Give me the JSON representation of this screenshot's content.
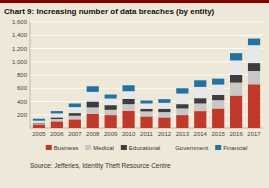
{
  "chart_data": {
    "type": "bar",
    "stacked": true,
    "title": "Chart 9: Increasing number of data breaches (by entity)",
    "source": "Source: Jefferies, Identity Theft Resource Centre",
    "categories": [
      2005,
      2006,
      2007,
      2008,
      2009,
      2010,
      2011,
      2012,
      2013,
      2014,
      2015,
      2016,
      2017
    ],
    "series": [
      {
        "name": "Business",
        "color": "#c0392b",
        "values": [
          55,
          100,
          130,
          215,
          195,
          260,
          175,
          160,
          195,
          255,
          295,
          490,
          660
        ]
      },
      {
        "name": "Medical",
        "color": "#c8c8c8",
        "values": [
          15,
          35,
          55,
          95,
          80,
          100,
          75,
          80,
          100,
          115,
          125,
          195,
          200
        ]
      },
      {
        "name": "Educational",
        "color": "#3d3d3d",
        "values": [
          10,
          25,
          40,
          90,
          70,
          80,
          40,
          50,
          65,
          80,
          80,
          115,
          120
        ]
      },
      {
        "name": "Government",
        "color": "#e8e8e8",
        "values": [
          30,
          60,
          90,
          145,
          100,
          115,
          80,
          90,
          160,
          170,
          155,
          220,
          270
        ]
      },
      {
        "name": "Financial",
        "color": "#2471a3",
        "values": [
          30,
          35,
          55,
          85,
          60,
          90,
          45,
          55,
          80,
          100,
          90,
          110,
          100
        ]
      }
    ],
    "ylim": [
      0,
      1600
    ],
    "yticks": [
      200,
      400,
      600,
      800,
      {
        "value": 1000,
        "label": "1,000"
      },
      {
        "value": 1200,
        "label": "1,200"
      },
      {
        "value": 1400,
        "label": "1,400"
      },
      {
        "value": 1600,
        "label": "1,600"
      }
    ],
    "grid": true,
    "legend": "bottom"
  }
}
